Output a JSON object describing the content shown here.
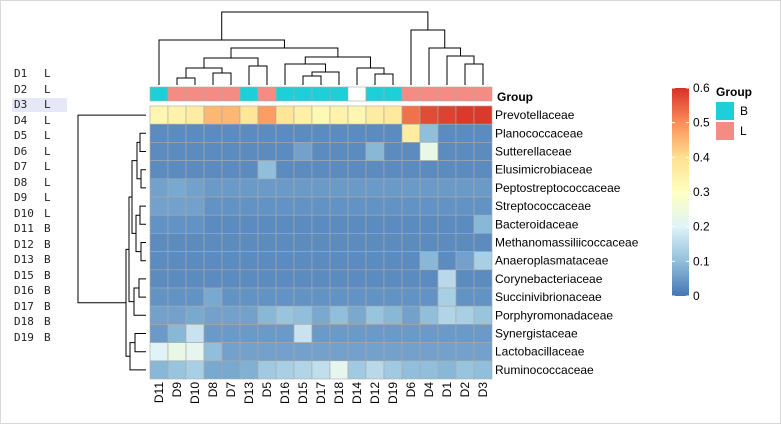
{
  "sample_table": [
    {
      "id": "D1",
      "group": "L"
    },
    {
      "id": "D2",
      "group": "L"
    },
    {
      "id": "D3",
      "group": "L"
    },
    {
      "id": "D4",
      "group": "L"
    },
    {
      "id": "D5",
      "group": "L"
    },
    {
      "id": "D6",
      "group": "L"
    },
    {
      "id": "D7",
      "group": "L"
    },
    {
      "id": "D8",
      "group": "L"
    },
    {
      "id": "D9",
      "group": "L"
    },
    {
      "id": "D10",
      "group": "L"
    },
    {
      "id": "D11",
      "group": "B"
    },
    {
      "id": "D12",
      "group": "B"
    },
    {
      "id": "D13",
      "group": "B"
    },
    {
      "id": "D15",
      "group": "B"
    },
    {
      "id": "D16",
      "group": "B"
    },
    {
      "id": "D17",
      "group": "B"
    },
    {
      "id": "D18",
      "group": "B"
    },
    {
      "id": "D19",
      "group": "B"
    }
  ],
  "highlighted_row": "D3",
  "chart_data": {
    "type": "heatmap",
    "columns": [
      "D11",
      "D9",
      "D10",
      "D8",
      "D7",
      "D13",
      "D5",
      "D16",
      "D15",
      "D17",
      "D18",
      "D14",
      "D12",
      "D19",
      "D6",
      "D4",
      "D1",
      "D2",
      "D3"
    ],
    "column_groups": [
      "B",
      "L",
      "L",
      "L",
      "L",
      "B",
      "L",
      "B",
      "B",
      "B",
      "B",
      "",
      "B",
      "B",
      "L",
      "L",
      "L",
      "L",
      "L"
    ],
    "rows": [
      "Prevotellaceae",
      "Planococcaceae",
      "Sutterellaceae",
      "Elusimicrobiaceae",
      "Peptostreptococcaceae",
      "Streptococcaceae",
      "Bacteroidaceae",
      "Methanomassiliicoccaceae",
      "Anaeroplasmataceae",
      "Corynebacteriaceae",
      "Succinivibrionaceae",
      "Porphyromonadaceae",
      "Synergistaceae",
      "Lactobacillaceae",
      "Ruminococcaceae"
    ],
    "values": [
      [
        0.33,
        0.34,
        0.36,
        0.45,
        0.45,
        0.38,
        0.48,
        0.38,
        0.35,
        0.32,
        0.34,
        0.33,
        0.36,
        0.37,
        0.53,
        0.57,
        0.58,
        0.59,
        0.59
      ],
      [
        0.03,
        0.03,
        0.03,
        0.03,
        0.03,
        0.03,
        0.03,
        0.03,
        0.03,
        0.03,
        0.03,
        0.03,
        0.03,
        0.03,
        0.36,
        0.1,
        0.03,
        0.03,
        0.03
      ],
      [
        0.03,
        0.03,
        0.03,
        0.03,
        0.03,
        0.03,
        0.03,
        0.03,
        0.06,
        0.03,
        0.03,
        0.03,
        0.09,
        0.03,
        0.03,
        0.23,
        0.03,
        0.03,
        0.03
      ],
      [
        0.03,
        0.03,
        0.03,
        0.03,
        0.03,
        0.03,
        0.1,
        0.03,
        0.03,
        0.03,
        0.03,
        0.03,
        0.03,
        0.03,
        0.03,
        0.03,
        0.03,
        0.03,
        0.03
      ],
      [
        0.06,
        0.07,
        0.06,
        0.05,
        0.05,
        0.05,
        0.05,
        0.05,
        0.05,
        0.05,
        0.05,
        0.05,
        0.05,
        0.05,
        0.05,
        0.05,
        0.05,
        0.05,
        0.05
      ],
      [
        0.06,
        0.06,
        0.06,
        0.04,
        0.04,
        0.04,
        0.04,
        0.04,
        0.04,
        0.04,
        0.04,
        0.04,
        0.04,
        0.04,
        0.04,
        0.04,
        0.04,
        0.04,
        0.04
      ],
      [
        0.04,
        0.04,
        0.04,
        0.03,
        0.03,
        0.03,
        0.03,
        0.03,
        0.03,
        0.03,
        0.03,
        0.03,
        0.03,
        0.03,
        0.03,
        0.03,
        0.03,
        0.03,
        0.09
      ],
      [
        0.03,
        0.03,
        0.03,
        0.03,
        0.03,
        0.03,
        0.03,
        0.03,
        0.03,
        0.03,
        0.03,
        0.03,
        0.03,
        0.03,
        0.03,
        0.03,
        0.03,
        0.03,
        0.03
      ],
      [
        0.03,
        0.03,
        0.03,
        0.03,
        0.03,
        0.03,
        0.03,
        0.03,
        0.03,
        0.03,
        0.03,
        0.03,
        0.03,
        0.03,
        0.03,
        0.09,
        0.03,
        0.06,
        0.13
      ],
      [
        0.03,
        0.03,
        0.03,
        0.03,
        0.03,
        0.03,
        0.03,
        0.03,
        0.03,
        0.03,
        0.03,
        0.03,
        0.03,
        0.03,
        0.03,
        0.03,
        0.15,
        0.03,
        0.03
      ],
      [
        0.04,
        0.04,
        0.04,
        0.07,
        0.04,
        0.04,
        0.04,
        0.04,
        0.04,
        0.04,
        0.04,
        0.04,
        0.04,
        0.04,
        0.04,
        0.04,
        0.13,
        0.04,
        0.04
      ],
      [
        0.06,
        0.06,
        0.07,
        0.06,
        0.06,
        0.06,
        0.09,
        0.11,
        0.1,
        0.07,
        0.1,
        0.07,
        0.11,
        0.09,
        0.06,
        0.1,
        0.14,
        0.13,
        0.11
      ],
      [
        0.05,
        0.09,
        0.17,
        0.05,
        0.05,
        0.05,
        0.05,
        0.05,
        0.17,
        0.05,
        0.05,
        0.05,
        0.05,
        0.05,
        0.05,
        0.05,
        0.05,
        0.05,
        0.05
      ],
      [
        0.2,
        0.23,
        0.22,
        0.1,
        0.06,
        0.06,
        0.06,
        0.06,
        0.06,
        0.06,
        0.06,
        0.06,
        0.06,
        0.06,
        0.06,
        0.06,
        0.06,
        0.06,
        0.06
      ],
      [
        0.09,
        0.11,
        0.13,
        0.07,
        0.07,
        0.08,
        0.12,
        0.13,
        0.14,
        0.16,
        0.22,
        0.12,
        0.15,
        0.12,
        0.1,
        0.1,
        0.09,
        0.11,
        0.1
      ]
    ],
    "colorbar": {
      "min": 0,
      "max": 0.6,
      "ticks": [
        "0",
        "0.1",
        "0.2",
        "0.3",
        "0.4",
        "0.5",
        "0.6"
      ]
    },
    "annotation_label": "Group",
    "legend": {
      "title": "Group",
      "entries": [
        {
          "label": "B",
          "color": "#1fcfd8"
        },
        {
          "label": "L",
          "color": "#f58c84"
        }
      ]
    },
    "colors": {
      "low": "#4575b4",
      "mid": "#ffffbf",
      "high": "#d73027",
      "grid": "#aaaaaa"
    },
    "legend_placement": "right"
  }
}
